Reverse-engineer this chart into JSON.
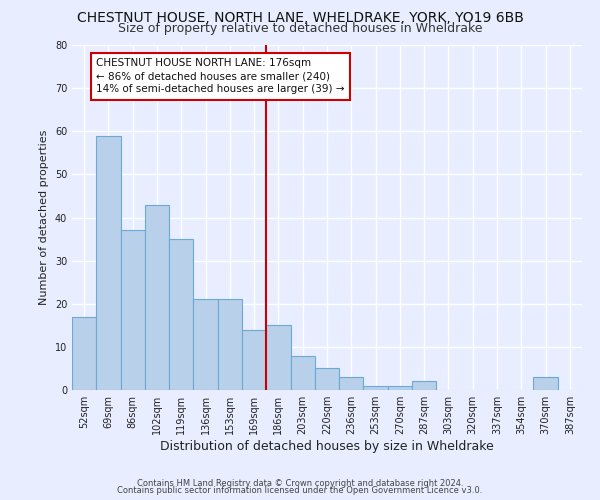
{
  "title": "CHESTNUT HOUSE, NORTH LANE, WHELDRAKE, YORK, YO19 6BB",
  "subtitle": "Size of property relative to detached houses in Wheldrake",
  "xlabel": "Distribution of detached houses by size in Wheldrake",
  "ylabel": "Number of detached properties",
  "footer_line1": "Contains HM Land Registry data © Crown copyright and database right 2024.",
  "footer_line2": "Contains public sector information licensed under the Open Government Licence v3.0.",
  "bin_labels": [
    "52sqm",
    "69sqm",
    "86sqm",
    "102sqm",
    "119sqm",
    "136sqm",
    "153sqm",
    "169sqm",
    "186sqm",
    "203sqm",
    "220sqm",
    "236sqm",
    "253sqm",
    "270sqm",
    "287sqm",
    "303sqm",
    "320sqm",
    "337sqm",
    "354sqm",
    "370sqm",
    "387sqm"
  ],
  "bin_values": [
    17,
    59,
    37,
    43,
    35,
    21,
    21,
    14,
    15,
    8,
    5,
    3,
    1,
    1,
    2,
    0,
    0,
    0,
    0,
    3,
    0
  ],
  "bar_color": "#b8d0ea",
  "bar_edge_color": "#6aaad4",
  "vline_x_idx": 7.5,
  "vline_color": "#cc0000",
  "annotation_text": "CHESTNUT HOUSE NORTH LANE: 176sqm\n← 86% of detached houses are smaller (240)\n14% of semi-detached houses are larger (39) →",
  "annotation_box_edge_color": "#cc0000",
  "annotation_box_facecolor": "#ffffff",
  "ylim": [
    0,
    80
  ],
  "yticks": [
    0,
    10,
    20,
    30,
    40,
    50,
    60,
    70,
    80
  ],
  "bg_color": "#e8eeff",
  "grid_color": "#ffffff",
  "title_fontsize": 10,
  "subtitle_fontsize": 9,
  "xlabel_fontsize": 9,
  "ylabel_fontsize": 8,
  "tick_fontsize": 7,
  "footer_fontsize": 6,
  "annotation_fontsize": 7.5
}
